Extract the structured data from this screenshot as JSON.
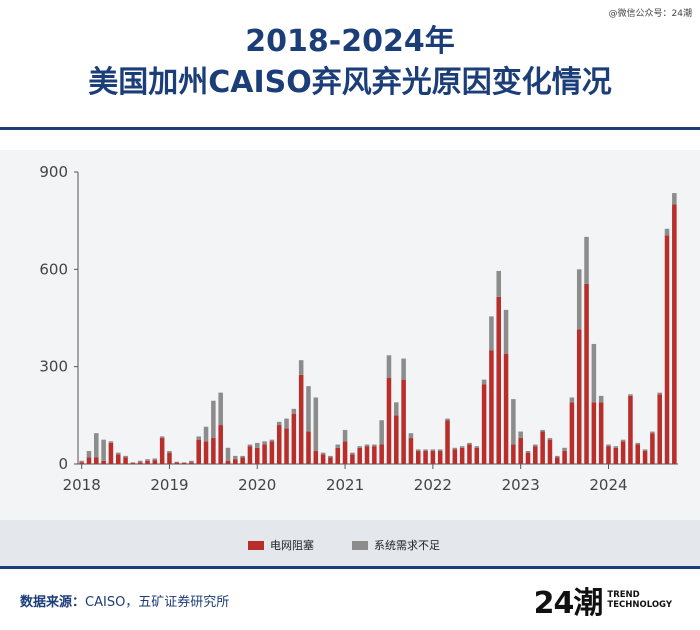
{
  "watermark": "@微信公众号：24潮",
  "title": {
    "line1": "2018-2024年",
    "line2": "美国加州CAISO弃风弃光原因变化情况"
  },
  "source": {
    "label": "数据来源：",
    "text": "CAISO，五矿证券研究所"
  },
  "logo": {
    "mark": "24潮",
    "line1": "TREND",
    "line2": "TECHNOLOGY"
  },
  "colors": {
    "congestion": "#b82e2b",
    "oversupply": "#8c8c8c",
    "title": "#1b3d78"
  },
  "chart_data": {
    "type": "bar",
    "stacked": true,
    "ylim": [
      0,
      900
    ],
    "yticks": [
      "0",
      "300",
      "600",
      "900"
    ],
    "xticks": [
      "2018",
      "2019",
      "2020",
      "2021",
      "2022",
      "2023",
      "2024"
    ],
    "legend_position": "bottom",
    "start": "2018-01",
    "series": [
      {
        "name": "电网阻塞",
        "values": [
          5,
          20,
          20,
          10,
          65,
          30,
          20,
          3,
          5,
          10,
          12,
          80,
          35,
          5,
          3,
          5,
          75,
          70,
          80,
          120,
          10,
          15,
          20,
          55,
          50,
          60,
          70,
          120,
          110,
          155,
          275,
          100,
          40,
          30,
          20,
          50,
          70,
          30,
          50,
          55,
          55,
          60,
          265,
          150,
          260,
          80,
          40,
          40,
          40,
          40,
          135,
          45,
          50,
          60,
          50,
          245,
          350,
          515,
          340,
          60,
          80,
          35,
          55,
          100,
          75,
          20,
          40,
          190,
          415,
          555,
          190,
          190,
          55,
          50,
          70,
          210,
          60,
          40,
          95,
          215,
          705,
          800
        ]
      },
      {
        "name": "系统需求不足",
        "values": [
          5,
          20,
          75,
          65,
          5,
          5,
          5,
          2,
          5,
          5,
          5,
          5,
          5,
          2,
          2,
          5,
          10,
          45,
          115,
          100,
          40,
          10,
          5,
          5,
          15,
          10,
          5,
          10,
          30,
          15,
          45,
          140,
          165,
          5,
          5,
          10,
          35,
          5,
          5,
          5,
          5,
          75,
          70,
          40,
          65,
          15,
          5,
          5,
          5,
          5,
          5,
          5,
          5,
          5,
          5,
          15,
          105,
          80,
          135,
          140,
          20,
          5,
          5,
          5,
          5,
          5,
          10,
          15,
          185,
          145,
          180,
          20,
          5,
          5,
          5,
          5,
          5,
          5,
          5,
          5,
          20,
          35
        ]
      }
    ]
  }
}
